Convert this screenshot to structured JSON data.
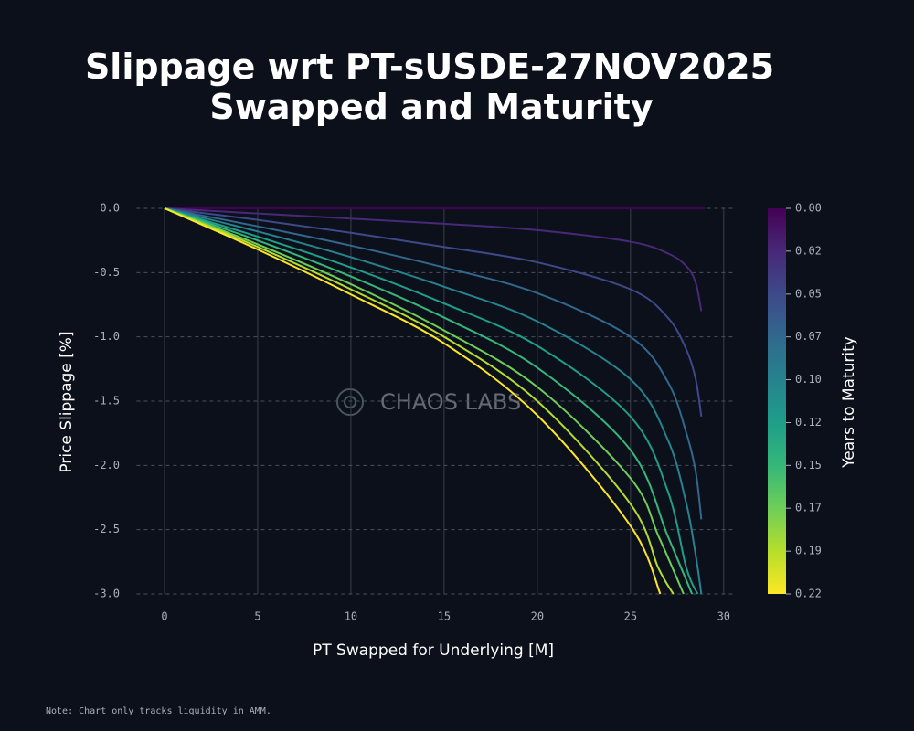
{
  "chart_data": {
    "type": "line",
    "title": [
      "Slippage wrt PT-sUSDE-27NOV2025",
      "Swapped and Maturity"
    ],
    "x_label": "PT Swapped for Underlying [M]",
    "y_label": "Price Slippage [%]",
    "colorbar_label": "Years to Maturity",
    "watermark": "CHAOS LABS",
    "note": "Note: Chart only tracks liquidity in AMM.",
    "xlim": [
      -1.5,
      30.5
    ],
    "xticks": [
      0,
      5,
      10,
      15,
      20,
      25,
      30
    ],
    "ylim": [
      -3,
      0
    ],
    "yticks": [
      {
        "value": 0,
        "label": "0.0"
      },
      {
        "value": -0.5,
        "label": "-0.5"
      },
      {
        "value": -1,
        "label": "-1.0"
      },
      {
        "value": -1.5,
        "label": "-1.5"
      },
      {
        "value": -2,
        "label": "-2.0"
      },
      {
        "value": -2.5,
        "label": "-2.5"
      },
      {
        "value": -3,
        "label": "-3.0"
      }
    ],
    "grid": true,
    "clim": [
      0,
      0.219
    ],
    "cticks": [
      {
        "value": 0,
        "label": "0.00"
      },
      {
        "value": 0.0243,
        "label": "0.02"
      },
      {
        "value": 0.0487,
        "label": "0.05"
      },
      {
        "value": 0.073,
        "label": "0.07"
      },
      {
        "value": 0.0973,
        "label": "0.10"
      },
      {
        "value": 0.1217,
        "label": "0.12"
      },
      {
        "value": 0.146,
        "label": "0.15"
      },
      {
        "value": 0.1703,
        "label": "0.17"
      },
      {
        "value": 0.1947,
        "label": "0.19"
      },
      {
        "value": 0.219,
        "label": "0.22"
      }
    ],
    "colormap": [
      "#440154",
      "#482878",
      "#3e4989",
      "#31688e",
      "#26828e",
      "#1f9e89",
      "#35b779",
      "#6ece58",
      "#b5de2b",
      "#fde725"
    ],
    "series": [
      {
        "color": "#440154",
        "x": [
          0,
          29
        ],
        "values": [
          0,
          0
        ]
      },
      {
        "color": "#482878",
        "x": [
          0,
          5,
          10,
          15,
          20,
          25,
          27,
          28,
          28.5,
          28.8
        ],
        "values": [
          0,
          -0.04,
          -0.08,
          -0.12,
          -0.17,
          -0.26,
          -0.35,
          -0.45,
          -0.58,
          -0.8
        ]
      },
      {
        "color": "#3e4989",
        "x": [
          0,
          5,
          10,
          15,
          20,
          25,
          27,
          28,
          28.5,
          28.8
        ],
        "values": [
          0,
          -0.09,
          -0.19,
          -0.3,
          -0.42,
          -0.63,
          -0.85,
          -1.1,
          -1.33,
          -1.62
        ]
      },
      {
        "color": "#31688e",
        "x": [
          0,
          5,
          10,
          15,
          20,
          25,
          27,
          28,
          28.5,
          28.8
        ],
        "values": [
          0,
          -0.14,
          -0.29,
          -0.46,
          -0.66,
          -1.0,
          -1.35,
          -1.75,
          -2.05,
          -2.42
        ]
      },
      {
        "color": "#26828e",
        "x": [
          0,
          5,
          10,
          15,
          20,
          25,
          27,
          28,
          28.5,
          28.8
        ],
        "values": [
          0,
          -0.18,
          -0.38,
          -0.61,
          -0.88,
          -1.33,
          -1.8,
          -2.3,
          -2.7,
          -3
        ]
      },
      {
        "color": "#1f9e89",
        "x": [
          0,
          5,
          10,
          15,
          20,
          25,
          27,
          28,
          28.6
        ],
        "values": [
          0,
          -0.22,
          -0.46,
          -0.74,
          -1.07,
          -1.62,
          -2.2,
          -2.8,
          -3
        ]
      },
      {
        "color": "#35b779",
        "x": [
          0,
          5,
          10,
          15,
          20,
          25,
          27,
          28.3
        ],
        "values": [
          0,
          -0.25,
          -0.53,
          -0.85,
          -1.24,
          -1.88,
          -2.55,
          -3
        ]
      },
      {
        "color": "#6ece58",
        "x": [
          0,
          5,
          10,
          15,
          20,
          25,
          26.5,
          27.85
        ],
        "values": [
          0,
          -0.28,
          -0.59,
          -0.95,
          -1.39,
          -2.1,
          -2.55,
          -3
        ]
      },
      {
        "color": "#b5de2b",
        "x": [
          0,
          5,
          10,
          15,
          20,
          25,
          26.5,
          27.3
        ],
        "values": [
          0,
          -0.3,
          -0.63,
          -1.0,
          -1.5,
          -2.3,
          -2.8,
          -3
        ]
      },
      {
        "color": "#fde725",
        "x": [
          0,
          5,
          10,
          15,
          20,
          25,
          26.6
        ],
        "values": [
          0,
          -0.32,
          -0.67,
          -1.05,
          -1.61,
          -2.47,
          -3
        ]
      }
    ]
  }
}
